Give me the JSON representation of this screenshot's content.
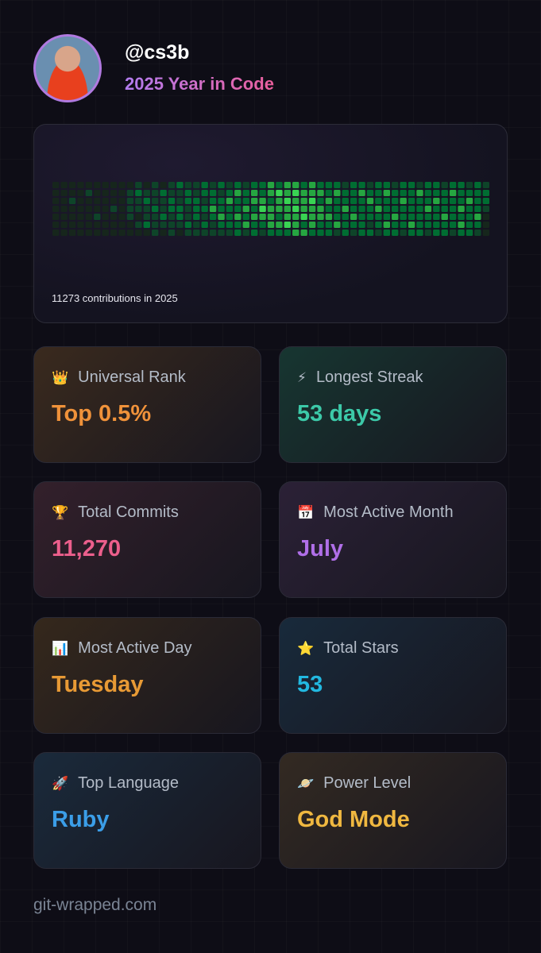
{
  "header": {
    "username": "@cs3b",
    "subtitle": "2025 Year in Code"
  },
  "contributions": {
    "caption": "11273 contributions in 2025",
    "level_colors": [
      "#16261c",
      "#0e4429",
      "#006d32",
      "#26a641",
      "#39d353"
    ],
    "weeks": [
      [
        0,
        0,
        0,
        0,
        0,
        0,
        0
      ],
      [
        0,
        0,
        0,
        0,
        0,
        0,
        0
      ],
      [
        0,
        0,
        1,
        0,
        0,
        0,
        0
      ],
      [
        0,
        0,
        0,
        0,
        0,
        0,
        0
      ],
      [
        0,
        1,
        0,
        0,
        0,
        0,
        0
      ],
      [
        0,
        0,
        0,
        0,
        1,
        0,
        0
      ],
      [
        0,
        0,
        0,
        0,
        0,
        0,
        0
      ],
      [
        0,
        0,
        0,
        1,
        0,
        0,
        0
      ],
      [
        0,
        0,
        0,
        0,
        0,
        0,
        0
      ],
      [
        0,
        1,
        1,
        1,
        1,
        0,
        0
      ],
      [
        1,
        2,
        1,
        1,
        0,
        1,
        0
      ],
      [
        0,
        1,
        2,
        1,
        1,
        2,
        0
      ],
      [
        1,
        1,
        1,
        2,
        1,
        1,
        1
      ],
      [
        0,
        2,
        1,
        1,
        2,
        1,
        0
      ],
      [
        1,
        1,
        2,
        2,
        1,
        1,
        1
      ],
      [
        2,
        1,
        1,
        2,
        2,
        1,
        0
      ],
      [
        1,
        2,
        2,
        1,
        1,
        2,
        1
      ],
      [
        1,
        1,
        2,
        2,
        2,
        1,
        1
      ],
      [
        2,
        2,
        1,
        2,
        1,
        2,
        1
      ],
      [
        1,
        2,
        2,
        3,
        2,
        1,
        1
      ],
      [
        2,
        1,
        2,
        2,
        3,
        2,
        1
      ],
      [
        1,
        2,
        3,
        2,
        2,
        2,
        1
      ],
      [
        2,
        3,
        2,
        2,
        3,
        2,
        2
      ],
      [
        1,
        2,
        2,
        3,
        2,
        3,
        1
      ],
      [
        2,
        3,
        3,
        2,
        3,
        2,
        2
      ],
      [
        2,
        2,
        3,
        4,
        3,
        2,
        1
      ],
      [
        3,
        3,
        2,
        3,
        3,
        3,
        2
      ],
      [
        2,
        4,
        3,
        3,
        2,
        3,
        2
      ],
      [
        3,
        3,
        4,
        3,
        3,
        4,
        2
      ],
      [
        3,
        4,
        3,
        4,
        3,
        3,
        3
      ],
      [
        2,
        3,
        3,
        3,
        4,
        2,
        3
      ],
      [
        3,
        3,
        4,
        3,
        3,
        3,
        2
      ],
      [
        2,
        3,
        2,
        3,
        3,
        2,
        2
      ],
      [
        2,
        2,
        3,
        2,
        3,
        2,
        2
      ],
      [
        2,
        3,
        2,
        2,
        2,
        3,
        1
      ],
      [
        1,
        2,
        2,
        3,
        2,
        2,
        2
      ],
      [
        2,
        2,
        2,
        2,
        3,
        2,
        1
      ],
      [
        2,
        3,
        2,
        2,
        2,
        2,
        2
      ],
      [
        1,
        2,
        3,
        2,
        2,
        1,
        2
      ],
      [
        2,
        2,
        2,
        3,
        2,
        2,
        1
      ],
      [
        2,
        3,
        2,
        2,
        2,
        3,
        2
      ],
      [
        1,
        2,
        2,
        2,
        3,
        2,
        2
      ],
      [
        2,
        2,
        3,
        2,
        2,
        2,
        1
      ],
      [
        2,
        2,
        2,
        2,
        2,
        3,
        2
      ],
      [
        1,
        3,
        2,
        2,
        2,
        2,
        2
      ],
      [
        2,
        2,
        2,
        3,
        2,
        2,
        1
      ],
      [
        2,
        2,
        3,
        2,
        2,
        2,
        2
      ],
      [
        1,
        2,
        2,
        2,
        3,
        2,
        2
      ],
      [
        2,
        3,
        2,
        2,
        2,
        2,
        1
      ],
      [
        2,
        2,
        2,
        3,
        2,
        3,
        2
      ],
      [
        1,
        2,
        3,
        2,
        2,
        2,
        2
      ],
      [
        2,
        2,
        2,
        2,
        3,
        2,
        1
      ],
      [
        1,
        2,
        2,
        1,
        0,
        0,
        0
      ]
    ]
  },
  "stats": [
    {
      "icon": "👑",
      "label": "Universal Rank",
      "value": "Top 0.5%",
      "color": "#f0923a",
      "tint": "#3a2a1e"
    },
    {
      "icon": "⚡",
      "label": "Longest Streak",
      "value": "53 days",
      "color": "#3cc9a8",
      "tint": "#173631"
    },
    {
      "icon": "🏆",
      "label": "Total Commits",
      "value": "11,270",
      "color": "#ec5f8c",
      "tint": "#33202b"
    },
    {
      "icon": "📅",
      "label": "Most Active Month",
      "value": "July",
      "color": "#b06fe8",
      "tint": "#2b2136"
    },
    {
      "icon": "📊",
      "label": "Most Active Day",
      "value": "Tuesday",
      "color": "#e89a35",
      "tint": "#35281c"
    },
    {
      "icon": "⭐",
      "label": "Total Stars",
      "value": "53",
      "color": "#22b8e0",
      "tint": "#182a3b"
    },
    {
      "icon": "🚀",
      "label": "Top Language",
      "value": "Ruby",
      "color": "#3b9ee8",
      "tint": "#1a2a3b"
    },
    {
      "icon": "🪐",
      "label": "Power Level",
      "value": "God Mode",
      "color": "#f0b840",
      "tint": "#332a22"
    }
  ],
  "footer": "git-wrapped.com"
}
